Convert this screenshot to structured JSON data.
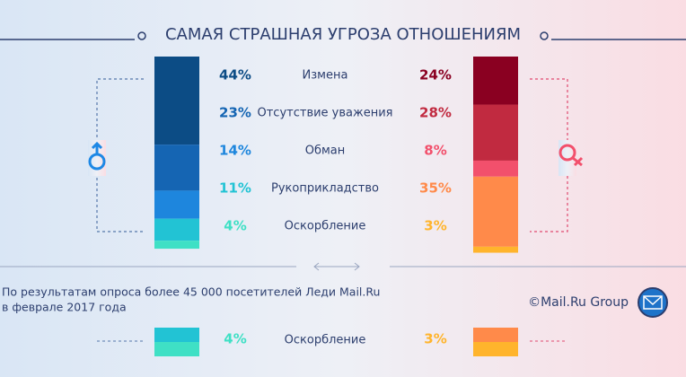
{
  "chart_data": {
    "type": "stacked-bar",
    "title": "САМАЯ СТРАШНАЯ УГРОЗА ОТНОШЕНИЯМ",
    "categories": [
      "Измена",
      "Отсутствие уважения",
      "Обман",
      "Рукоприкладство",
      "Оскорбление"
    ],
    "series": [
      {
        "colors": [
          "#0c4c85",
          "#1565b3",
          "#1e86dd",
          "#22c3d4",
          "#3fe0c5"
        ],
        "values": [
          44,
          23,
          14,
          11,
          4
        ],
        "value_labels": [
          "44%",
          "23%",
          "14%",
          "11%",
          "4%"
        ]
      },
      {
        "colors": [
          "#8a0021",
          "#c12a40",
          "#f2506c",
          "#ff8a4a",
          "#ffb42c"
        ],
        "values": [
          24,
          28,
          8,
          35,
          3
        ],
        "value_labels": [
          "24%",
          "28%",
          "8%",
          "35%",
          "3%"
        ]
      }
    ],
    "footnote": [
      "По результатам опроса более 45 000 посетителей Леди Mail.Ru",
      "в феврале 2017 года"
    ],
    "brand": "©Mail.Ru Group"
  }
}
